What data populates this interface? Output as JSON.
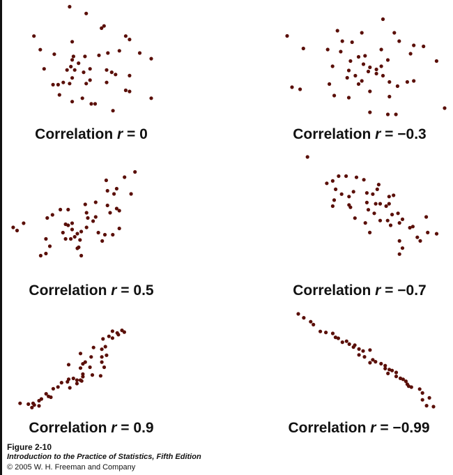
{
  "figure": {
    "number": "Figure 2-10",
    "book": "Introduction to the Practice of Statistics, Fifth Edition",
    "copyright": "© 2005 W. H. Freeman and Company"
  },
  "colors": {
    "point": "#5a0f08",
    "text": "#111111",
    "background": "#ffffff"
  },
  "chart_data": [
    {
      "type": "scatter",
      "title": "Correlation r = 0",
      "label_prefix": "Correlation",
      "label_var": "r",
      "label_value": "= 0",
      "r": 0,
      "xlim": [
        0,
        10
      ],
      "ylim": [
        0,
        10
      ],
      "points": [
        [
          3.0,
          9.9
        ],
        [
          4.3,
          9.3
        ],
        [
          0.2,
          7.3
        ],
        [
          5.5,
          8.0
        ],
        [
          5.7,
          8.2
        ],
        [
          7.4,
          7.3
        ],
        [
          7.7,
          7.0
        ],
        [
          3.2,
          6.8
        ],
        [
          0.7,
          6.1
        ],
        [
          1.8,
          5.7
        ],
        [
          3.3,
          5.5
        ],
        [
          4.2,
          5.5
        ],
        [
          5.3,
          5.6
        ],
        [
          6.0,
          5.8
        ],
        [
          6.9,
          6.0
        ],
        [
          8.5,
          5.8
        ],
        [
          9.4,
          5.3
        ],
        [
          3.2,
          5.2
        ],
        [
          3.7,
          4.9
        ],
        [
          3.1,
          4.6
        ],
        [
          2.8,
          4.3
        ],
        [
          1.0,
          4.4
        ],
        [
          3.4,
          4.3
        ],
        [
          4.6,
          4.4
        ],
        [
          4.1,
          4.1
        ],
        [
          5.9,
          4.3
        ],
        [
          6.3,
          4.1
        ],
        [
          6.6,
          3.9
        ],
        [
          7.7,
          3.8
        ],
        [
          3.2,
          3.6
        ],
        [
          4.6,
          3.4
        ],
        [
          2.5,
          3.2
        ],
        [
          1.7,
          3.0
        ],
        [
          2.1,
          3.0
        ],
        [
          3.0,
          3.1
        ],
        [
          4.3,
          3.1
        ],
        [
          5.9,
          3.2
        ],
        [
          7.4,
          2.5
        ],
        [
          7.7,
          2.4
        ],
        [
          2.2,
          2.1
        ],
        [
          4.0,
          1.8
        ],
        [
          3.2,
          1.5
        ],
        [
          4.7,
          1.3
        ],
        [
          5.0,
          1.3
        ],
        [
          6.4,
          0.7
        ],
        [
          9.4,
          1.8
        ]
      ]
    },
    {
      "type": "scatter",
      "title": "Correlation r = −0.3",
      "label_prefix": "Correlation",
      "label_var": "r",
      "label_value": "= −0.3",
      "r": -0.3,
      "xlim": [
        0,
        10
      ],
      "ylim": [
        0,
        10
      ],
      "points": [
        [
          6.2,
          9.5
        ],
        [
          3.4,
          8.4
        ],
        [
          4.9,
          8.2
        ],
        [
          6.9,
          8.2
        ],
        [
          0.3,
          7.9
        ],
        [
          3.7,
          7.4
        ],
        [
          4.3,
          7.3
        ],
        [
          7.2,
          7.4
        ],
        [
          8.1,
          7.0
        ],
        [
          8.7,
          6.9
        ],
        [
          2.8,
          6.6
        ],
        [
          1.3,
          6.7
        ],
        [
          3.6,
          6.4
        ],
        [
          6.1,
          6.6
        ],
        [
          7.9,
          6.2
        ],
        [
          5.1,
          6.0
        ],
        [
          4.7,
          5.9
        ],
        [
          6.5,
          5.6
        ],
        [
          4.2,
          5.5
        ],
        [
          9.5,
          5.5
        ],
        [
          3.1,
          5.0
        ],
        [
          5.0,
          5.2
        ],
        [
          5.4,
          4.9
        ],
        [
          6.1,
          5.0
        ],
        [
          5.8,
          4.7
        ],
        [
          4.1,
          4.6
        ],
        [
          5.3,
          4.5
        ],
        [
          4.5,
          4.1
        ],
        [
          5.8,
          4.3
        ],
        [
          6.2,
          4.1
        ],
        [
          4.0,
          3.9
        ],
        [
          6.6,
          3.5
        ],
        [
          4.9,
          3.6
        ],
        [
          2.9,
          3.3
        ],
        [
          7.7,
          3.5
        ],
        [
          8.1,
          3.6
        ],
        [
          7.1,
          3.1
        ],
        [
          4.7,
          3.3
        ],
        [
          0.6,
          3.0
        ],
        [
          1.1,
          2.8
        ],
        [
          5.4,
          2.6
        ],
        [
          6.6,
          2.1
        ],
        [
          3.2,
          2.2
        ],
        [
          4.1,
          2.0
        ],
        [
          10.0,
          1.0
        ],
        [
          5.4,
          0.6
        ],
        [
          6.5,
          0.4
        ],
        [
          7.0,
          0.4
        ]
      ]
    },
    {
      "type": "scatter",
      "title": "Correlation r = 0.5",
      "label_prefix": "Correlation",
      "label_var": "r",
      "label_value": "= 0.5",
      "r": 0.5,
      "xlim": [
        0,
        10
      ],
      "ylim": [
        0,
        10
      ],
      "points": [
        [
          9.4,
          9.7
        ],
        [
          8.6,
          9.2
        ],
        [
          7.2,
          8.9
        ],
        [
          8.0,
          8.1
        ],
        [
          7.3,
          7.9
        ],
        [
          9.1,
          7.6
        ],
        [
          7.8,
          7.6
        ],
        [
          6.4,
          6.8
        ],
        [
          5.6,
          6.6
        ],
        [
          7.3,
          6.5
        ],
        [
          8.0,
          6.2
        ],
        [
          8.2,
          6.0
        ],
        [
          3.7,
          6.1
        ],
        [
          4.3,
          6.1
        ],
        [
          7.5,
          5.8
        ],
        [
          5.7,
          5.8
        ],
        [
          3.1,
          5.6
        ],
        [
          5.8,
          5.3
        ],
        [
          6.4,
          5.4
        ],
        [
          2.7,
          5.3
        ],
        [
          6.2,
          5.0
        ],
        [
          4.6,
          4.8
        ],
        [
          4.1,
          4.7
        ],
        [
          0.9,
          4.8
        ],
        [
          4.3,
          4.6
        ],
        [
          0.1,
          4.4
        ],
        [
          8.2,
          4.3
        ],
        [
          4.6,
          4.2
        ],
        [
          0.4,
          4.1
        ],
        [
          5.7,
          4.4
        ],
        [
          5.3,
          4.0
        ],
        [
          3.9,
          3.9
        ],
        [
          6.6,
          3.9
        ],
        [
          7.1,
          3.7
        ],
        [
          7.7,
          3.7
        ],
        [
          5.0,
          3.8
        ],
        [
          4.8,
          3.5
        ],
        [
          4.5,
          3.3
        ],
        [
          2.6,
          3.3
        ],
        [
          4.1,
          3.3
        ],
        [
          6.9,
          3.1
        ],
        [
          5.2,
          3.2
        ],
        [
          2.9,
          2.6
        ],
        [
          5.1,
          2.5
        ],
        [
          5.0,
          2.4
        ],
        [
          2.2,
          1.7
        ],
        [
          2.6,
          1.9
        ],
        [
          5.3,
          1.7
        ]
      ]
    },
    {
      "type": "scatter",
      "title": "Correlation r = −0.7",
      "label_prefix": "Correlation",
      "label_var": "r",
      "label_value": "= −0.7",
      "r": -0.7,
      "xlim": [
        0,
        10
      ],
      "ylim": [
        0,
        10
      ],
      "points": [
        [
          0.9,
          10.0
        ],
        [
          3.0,
          8.4
        ],
        [
          3.5,
          8.4
        ],
        [
          4.2,
          8.3
        ],
        [
          4.7,
          8.1
        ],
        [
          2.6,
          8.0
        ],
        [
          2.2,
          7.8
        ],
        [
          5.7,
          7.7
        ],
        [
          2.8,
          7.3
        ],
        [
          5.6,
          7.3
        ],
        [
          4.0,
          7.1
        ],
        [
          4.9,
          7.0
        ],
        [
          5.3,
          6.9
        ],
        [
          3.2,
          6.9
        ],
        [
          6.4,
          6.7
        ],
        [
          6.7,
          6.8
        ],
        [
          3.7,
          6.7
        ],
        [
          2.7,
          6.4
        ],
        [
          4.9,
          6.2
        ],
        [
          6.4,
          6.1
        ],
        [
          3.7,
          6.0
        ],
        [
          5.8,
          6.1
        ],
        [
          5.5,
          6.1
        ],
        [
          2.6,
          5.9
        ],
        [
          6.2,
          5.9
        ],
        [
          5.0,
          5.6
        ],
        [
          3.8,
          5.8
        ],
        [
          5.4,
          5.3
        ],
        [
          7.0,
          5.3
        ],
        [
          6.6,
          5.2
        ],
        [
          8.9,
          5.0
        ],
        [
          4.1,
          4.9
        ],
        [
          5.8,
          4.7
        ],
        [
          6.3,
          4.7
        ],
        [
          7.3,
          4.8
        ],
        [
          4.8,
          4.5
        ],
        [
          7.1,
          4.5
        ],
        [
          6.5,
          4.3
        ],
        [
          7.8,
          4.1
        ],
        [
          8.0,
          4.2
        ],
        [
          9.0,
          3.7
        ],
        [
          9.6,
          3.6
        ],
        [
          8.3,
          3.3
        ],
        [
          5.1,
          3.7
        ],
        [
          7.1,
          3.0
        ],
        [
          8.5,
          3.0
        ],
        [
          7.3,
          2.4
        ],
        [
          7.1,
          1.9
        ]
      ]
    },
    {
      "type": "scatter",
      "title": "Correlation r = 0.9",
      "label_prefix": "Correlation",
      "label_var": "r",
      "label_value": "= 0.9",
      "r": 0.9,
      "xlim": [
        0,
        10
      ],
      "ylim": [
        0,
        10
      ],
      "points": [
        [
          8.2,
          9.2
        ],
        [
          9.0,
          9.3
        ],
        [
          9.2,
          9.1
        ],
        [
          8.6,
          9.0
        ],
        [
          8.7,
          8.8
        ],
        [
          7.9,
          8.6
        ],
        [
          8.2,
          8.4
        ],
        [
          7.4,
          8.3
        ],
        [
          7.6,
          7.4
        ],
        [
          6.6,
          7.3
        ],
        [
          7.3,
          7.1
        ],
        [
          5.5,
          6.6
        ],
        [
          7.3,
          6.2
        ],
        [
          7.7,
          6.4
        ],
        [
          6.4,
          6.2
        ],
        [
          7.3,
          5.6
        ],
        [
          5.9,
          5.6
        ],
        [
          5.7,
          5.4
        ],
        [
          7.5,
          5.0
        ],
        [
          4.5,
          5.3
        ],
        [
          6.3,
          5.0
        ],
        [
          5.5,
          4.9
        ],
        [
          5.7,
          4.2
        ],
        [
          7.2,
          4.0
        ],
        [
          5.7,
          3.9
        ],
        [
          4.9,
          3.7
        ],
        [
          5.6,
          3.4
        ],
        [
          5.2,
          3.5
        ],
        [
          5.5,
          3.5
        ],
        [
          4.5,
          3.6
        ],
        [
          4.4,
          3.3
        ],
        [
          6.5,
          4.1
        ],
        [
          3.9,
          3.2
        ],
        [
          5.2,
          3.1
        ],
        [
          3.6,
          2.7
        ],
        [
          3.2,
          2.5
        ],
        [
          4.6,
          2.6
        ],
        [
          2.6,
          1.9
        ],
        [
          3.0,
          1.5
        ],
        [
          2.8,
          1.6
        ],
        [
          2.2,
          1.3
        ],
        [
          2.0,
          1.1
        ],
        [
          1.5,
          0.8
        ],
        [
          1.6,
          0.6
        ],
        [
          0.4,
          0.8
        ],
        [
          1.1,
          0.7
        ],
        [
          2.0,
          0.5
        ],
        [
          1.4,
          0.3
        ]
      ]
    },
    {
      "type": "scatter",
      "title": "Correlation r = −0.99",
      "label_prefix": "Correlation",
      "label_var": "r",
      "label_value": "= −0.99",
      "r": -0.99,
      "xlim": [
        0,
        10
      ],
      "ylim": [
        0,
        10
      ],
      "points": [
        [
          0.2,
          10.0
        ],
        [
          0.6,
          9.6
        ],
        [
          1.1,
          9.2
        ],
        [
          1.3,
          8.9
        ],
        [
          1.8,
          8.2
        ],
        [
          2.2,
          8.1
        ],
        [
          2.7,
          8.0
        ],
        [
          2.9,
          7.6
        ],
        [
          3.1,
          7.5
        ],
        [
          3.7,
          7.2
        ],
        [
          3.4,
          7.1
        ],
        [
          3.9,
          6.9
        ],
        [
          4.3,
          6.8
        ],
        [
          4.2,
          6.6
        ],
        [
          4.6,
          6.4
        ],
        [
          4.9,
          6.2
        ],
        [
          5.4,
          6.3
        ],
        [
          4.6,
          5.8
        ],
        [
          5.0,
          5.6
        ],
        [
          5.6,
          5.3
        ],
        [
          5.4,
          5.0
        ],
        [
          5.8,
          5.1
        ],
        [
          6.2,
          4.9
        ],
        [
          6.5,
          4.7
        ],
        [
          6.8,
          4.3
        ],
        [
          7.0,
          4.2
        ],
        [
          7.3,
          4.0
        ],
        [
          6.5,
          4.4
        ],
        [
          6.7,
          3.9
        ],
        [
          7.3,
          3.6
        ],
        [
          7.6,
          3.4
        ],
        [
          7.8,
          3.3
        ],
        [
          8.0,
          3.1
        ],
        [
          8.1,
          2.8
        ],
        [
          8.4,
          2.5
        ],
        [
          8.2,
          2.6
        ],
        [
          9.0,
          2.3
        ],
        [
          9.2,
          1.9
        ],
        [
          9.7,
          1.4
        ],
        [
          9.2,
          1.2
        ],
        [
          9.5,
          0.6
        ],
        [
          10.0,
          0.5
        ]
      ]
    }
  ]
}
